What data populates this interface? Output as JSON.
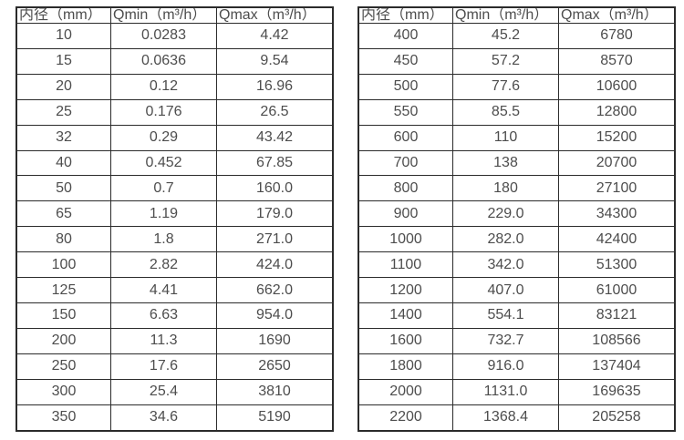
{
  "colors": {
    "background": "#ffffff",
    "border": "#2b2b2b",
    "text": "#4d4d4d"
  },
  "tables": [
    {
      "name": "flow-table-small-diameters",
      "headers": [
        "内径（mm）",
        "Qmin（m³/h）",
        "Qmax（m³/h）"
      ],
      "rows": [
        [
          "10",
          "0.0283",
          "4.42"
        ],
        [
          "15",
          "0.0636",
          "9.54"
        ],
        [
          "20",
          "0.12",
          "16.96"
        ],
        [
          "25",
          "0.176",
          "26.5"
        ],
        [
          "32",
          "0.29",
          "43.42"
        ],
        [
          "40",
          "0.452",
          "67.85"
        ],
        [
          "50",
          "0.7",
          "160.0"
        ],
        [
          "65",
          "1.19",
          "179.0"
        ],
        [
          "80",
          "1.8",
          "271.0"
        ],
        [
          "100",
          "2.82",
          "424.0"
        ],
        [
          "125",
          "4.41",
          "662.0"
        ],
        [
          "150",
          "6.63",
          "954.0"
        ],
        [
          "200",
          "11.3",
          "1690"
        ],
        [
          "250",
          "17.6",
          "2650"
        ],
        [
          "300",
          "25.4",
          "3810"
        ],
        [
          "350",
          "34.6",
          "5190"
        ]
      ]
    },
    {
      "name": "flow-table-large-diameters",
      "headers": [
        "内径（mm）",
        "Qmin（m³/h）",
        "Qmax（m³/h）"
      ],
      "rows": [
        [
          "400",
          "45.2",
          "6780"
        ],
        [
          "450",
          "57.2",
          "8570"
        ],
        [
          "500",
          "77.6",
          "10600"
        ],
        [
          "550",
          "85.5",
          "12800"
        ],
        [
          "600",
          "110",
          "15200"
        ],
        [
          "700",
          "138",
          "20700"
        ],
        [
          "800",
          "180",
          "27100"
        ],
        [
          "900",
          "229.0",
          "34300"
        ],
        [
          "1000",
          "282.0",
          "42400"
        ],
        [
          "1100",
          "342.0",
          "51300"
        ],
        [
          "1200",
          "407.0",
          "61000"
        ],
        [
          "1400",
          "554.1",
          "83121"
        ],
        [
          "1600",
          "732.7",
          "108566"
        ],
        [
          "1800",
          "916.0",
          "137404"
        ],
        [
          "2000",
          "1131.0",
          "169635"
        ],
        [
          "2200",
          "1368.4",
          "205258"
        ]
      ]
    }
  ]
}
